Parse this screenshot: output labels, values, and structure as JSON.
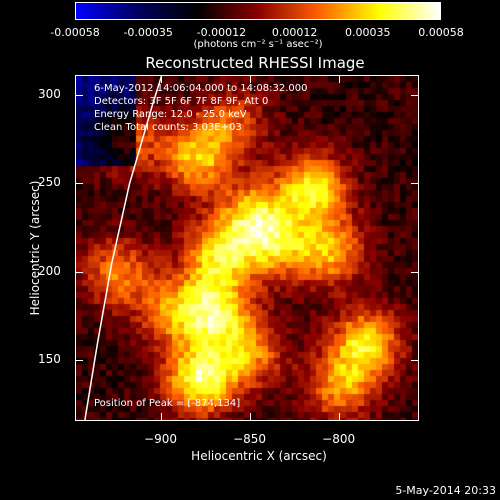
{
  "colorbar": {
    "ticks": [
      "-0.00058",
      "-0.00035",
      "-0.00012",
      "0.00012",
      "0.00035",
      "0.00058"
    ],
    "unit": "(photons cm⁻² s⁻¹ asec⁻²)",
    "colors": [
      "#0000ff",
      "#000060",
      "#000000",
      "#8a0000",
      "#ff6000",
      "#ffff00",
      "#ffffff"
    ]
  },
  "chart_data": {
    "type": "heatmap",
    "title": "Reconstructed RHESSI Image",
    "xlabel": "Heliocentric X (arcsec)",
    "ylabel": "Heliocentric Y (arcsec)",
    "xlim": [
      -948,
      -756
    ],
    "ylim": [
      117,
      311
    ],
    "xticks": [
      -900,
      -850,
      -800
    ],
    "yticks": [
      150,
      200,
      250,
      300
    ],
    "clim": [
      -0.00058,
      0.00058
    ],
    "annotations": [
      "6-May-2012 14:06:04.000 to 14:08:32.000",
      "Detectors: 3F 5F 6F 7F 8F 9F, Att 0",
      "Energy Range: 12.0 - 25.0 keV",
      "Clean     Total counts: 3.03E+03"
    ],
    "peak_label": "Position of Peak = [-874,134]",
    "limb_curve": [
      [
        -943,
        117
      ],
      [
        -936,
        160
      ],
      [
        -928,
        205
      ],
      [
        -918,
        250
      ],
      [
        -905,
        295
      ],
      [
        -900,
        311
      ]
    ],
    "sources": [
      {
        "x": -878,
        "y": 140,
        "amp": 0.00058
      },
      {
        "x": -870,
        "y": 178,
        "amp": 0.0005
      },
      {
        "x": -868,
        "y": 210,
        "amp": 0.00046
      },
      {
        "x": -880,
        "y": 265,
        "amp": 0.00044
      },
      {
        "x": -848,
        "y": 232,
        "amp": 0.00042
      },
      {
        "x": -835,
        "y": 215,
        "amp": 0.00036
      },
      {
        "x": -815,
        "y": 248,
        "amp": 0.0005
      },
      {
        "x": -805,
        "y": 212,
        "amp": 0.0004
      },
      {
        "x": -785,
        "y": 160,
        "amp": 0.00048
      },
      {
        "x": -800,
        "y": 135,
        "amp": 0.00036
      },
      {
        "x": -925,
        "y": 200,
        "amp": 0.00034
      },
      {
        "x": -920,
        "y": 275,
        "amp": 0.0003
      },
      {
        "x": -850,
        "y": 155,
        "amp": 0.00034
      },
      {
        "x": -895,
        "y": 178,
        "amp": 0.00032
      },
      {
        "x": -860,
        "y": 285,
        "amp": 0.00026
      }
    ]
  },
  "footer": {
    "date": "5-May-2014 20:33"
  }
}
